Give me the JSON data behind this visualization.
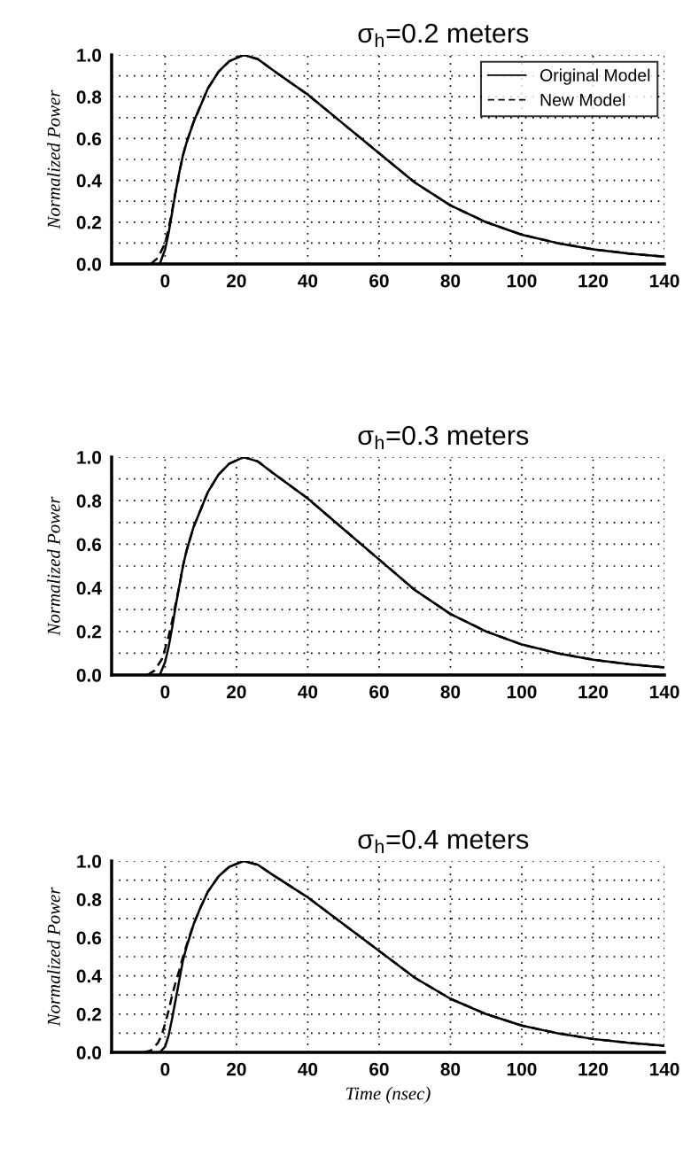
{
  "chart_data": [
    {
      "type": "line",
      "title": "σ$_{h}$=0.2 meters",
      "ylabel": "Normalized Power",
      "xlim": [
        -15,
        140
      ],
      "xticks": [
        0,
        20,
        40,
        60,
        80,
        100,
        120,
        140
      ],
      "ylim": [
        0,
        1.0
      ],
      "yticks": [
        {
          "value": 0,
          "label": "0.0"
        },
        {
          "value": 0.1,
          "label": null
        },
        {
          "value": 0.2,
          "label": "0.2"
        },
        {
          "value": 0.3,
          "label": null
        },
        {
          "value": 0.4,
          "label": "0.4"
        },
        {
          "value": 0.5,
          "label": null
        },
        {
          "value": 0.6,
          "label": "0.6"
        },
        {
          "value": 0.7,
          "label": null
        },
        {
          "value": 0.8,
          "label": "0.8"
        },
        {
          "value": 0.9,
          "label": null
        },
        {
          "value": 1.0,
          "label": "1.0"
        }
      ],
      "grid": true,
      "legend": "top right",
      "series": [
        {
          "name": "Original Model",
          "color": "#000000",
          "line_style": "solid",
          "x": [
            -1.5,
            0,
            1,
            2,
            3,
            4,
            5,
            6,
            8,
            10,
            12,
            15,
            18,
            22,
            26,
            30,
            35,
            40,
            50,
            60,
            70,
            80,
            90,
            100,
            110,
            120,
            130,
            140
          ],
          "values": [
            0,
            0.07,
            0.15,
            0.25,
            0.35,
            0.44,
            0.52,
            0.58,
            0.68,
            0.76,
            0.84,
            0.92,
            0.97,
            1.0,
            0.98,
            0.93,
            0.87,
            0.81,
            0.67,
            0.53,
            0.39,
            0.28,
            0.2,
            0.14,
            0.1,
            0.07,
            0.05,
            0.035
          ]
        },
        {
          "name": "New Model",
          "color": "#000000",
          "line_style": "dashed",
          "x": [
            -4,
            -2,
            0,
            1,
            2,
            3,
            4,
            5,
            6,
            8,
            10,
            12,
            15,
            18,
            22,
            26,
            30,
            35,
            40,
            50,
            60,
            70,
            80,
            90,
            100,
            110,
            120,
            130,
            140
          ],
          "values": [
            0,
            0.03,
            0.1,
            0.17,
            0.26,
            0.35,
            0.44,
            0.52,
            0.58,
            0.68,
            0.76,
            0.84,
            0.92,
            0.97,
            1.0,
            0.98,
            0.93,
            0.87,
            0.81,
            0.67,
            0.53,
            0.39,
            0.28,
            0.2,
            0.14,
            0.1,
            0.07,
            0.05,
            0.035
          ]
        }
      ]
    },
    {
      "type": "line",
      "title": "σ$_{h}$=0.3 meters",
      "ylabel": "Normalized Power",
      "xlim": [
        -15,
        140
      ],
      "xticks": [
        0,
        20,
        40,
        60,
        80,
        100,
        120,
        140
      ],
      "ylim": [
        0,
        1.0
      ],
      "yticks": [
        {
          "value": 0,
          "label": "0.0"
        },
        {
          "value": 0.1,
          "label": null
        },
        {
          "value": 0.2,
          "label": "0.2"
        },
        {
          "value": 0.3,
          "label": null
        },
        {
          "value": 0.4,
          "label": "0.4"
        },
        {
          "value": 0.5,
          "label": null
        },
        {
          "value": 0.6,
          "label": "0.6"
        },
        {
          "value": 0.7,
          "label": null
        },
        {
          "value": 0.8,
          "label": "0.8"
        },
        {
          "value": 0.9,
          "label": null
        },
        {
          "value": 1.0,
          "label": "1.0"
        }
      ],
      "grid": true,
      "series": [
        {
          "color": "#000000",
          "line_style": "solid",
          "x": [
            -1.5,
            0,
            1,
            2,
            3,
            4,
            5,
            6,
            8,
            10,
            12,
            15,
            18,
            22,
            26,
            30,
            35,
            40,
            50,
            60,
            70,
            80,
            90,
            100,
            110,
            120,
            130,
            140
          ],
          "values": [
            0,
            0.06,
            0.13,
            0.22,
            0.32,
            0.41,
            0.5,
            0.57,
            0.68,
            0.76,
            0.84,
            0.92,
            0.97,
            1.0,
            0.98,
            0.93,
            0.87,
            0.81,
            0.67,
            0.53,
            0.39,
            0.28,
            0.2,
            0.14,
            0.1,
            0.07,
            0.05,
            0.035
          ]
        },
        {
          "color": "#000000",
          "line_style": "dashed",
          "x": [
            -5,
            -3,
            -1,
            0,
            1,
            2,
            3,
            4,
            5,
            6,
            8,
            10,
            12,
            15,
            18,
            22,
            26,
            30,
            35,
            40,
            50,
            60,
            70,
            80,
            90,
            100,
            110,
            120,
            130,
            140
          ],
          "values": [
            0,
            0.02,
            0.07,
            0.12,
            0.18,
            0.25,
            0.33,
            0.41,
            0.5,
            0.57,
            0.68,
            0.76,
            0.84,
            0.92,
            0.97,
            1.0,
            0.98,
            0.93,
            0.87,
            0.81,
            0.67,
            0.53,
            0.39,
            0.28,
            0.2,
            0.14,
            0.1,
            0.07,
            0.05,
            0.035
          ]
        }
      ]
    },
    {
      "type": "line",
      "title": "σ$_{h}$=0.4 meters",
      "ylabel": "Normalized Power",
      "xlabel": "Time (nsec)",
      "xlim": [
        -15,
        140
      ],
      "xticks": [
        0,
        20,
        40,
        60,
        80,
        100,
        120,
        140
      ],
      "ylim": [
        0,
        1.0
      ],
      "yticks": [
        {
          "value": 0,
          "label": "0.0"
        },
        {
          "value": 0.1,
          "label": null
        },
        {
          "value": 0.2,
          "label": "0.2"
        },
        {
          "value": 0.3,
          "label": null
        },
        {
          "value": 0.4,
          "label": "0.4"
        },
        {
          "value": 0.5,
          "label": null
        },
        {
          "value": 0.6,
          "label": "0.6"
        },
        {
          "value": 0.7,
          "label": null
        },
        {
          "value": 0.8,
          "label": "0.8"
        },
        {
          "value": 0.9,
          "label": null
        },
        {
          "value": 1.0,
          "label": "1.0"
        }
      ],
      "grid": true,
      "series": [
        {
          "color": "#000000",
          "line_style": "solid",
          "x": [
            -1.5,
            0,
            1,
            2,
            3,
            4,
            5,
            6,
            8,
            10,
            12,
            15,
            18,
            22,
            26,
            30,
            35,
            40,
            50,
            60,
            70,
            80,
            90,
            100,
            110,
            120,
            130,
            140
          ],
          "values": [
            0,
            0.03,
            0.09,
            0.18,
            0.28,
            0.38,
            0.48,
            0.55,
            0.67,
            0.76,
            0.84,
            0.92,
            0.97,
            1.0,
            0.98,
            0.93,
            0.87,
            0.81,
            0.67,
            0.53,
            0.39,
            0.28,
            0.2,
            0.14,
            0.1,
            0.07,
            0.05,
            0.035
          ]
        },
        {
          "color": "#000000",
          "line_style": "dashed",
          "x": [
            -6,
            -4,
            -2,
            -1,
            0,
            1,
            2,
            3,
            4,
            5,
            6,
            8,
            10,
            12,
            15,
            18,
            22,
            26,
            30,
            35,
            40,
            50,
            60,
            70,
            80,
            90,
            100,
            110,
            120,
            130,
            140
          ],
          "values": [
            0,
            0.01,
            0.05,
            0.09,
            0.15,
            0.22,
            0.3,
            0.37,
            0.43,
            0.5,
            0.56,
            0.67,
            0.76,
            0.84,
            0.92,
            0.97,
            1.0,
            0.98,
            0.93,
            0.87,
            0.81,
            0.67,
            0.53,
            0.39,
            0.28,
            0.2,
            0.14,
            0.1,
            0.07,
            0.05,
            0.035
          ]
        }
      ]
    }
  ]
}
